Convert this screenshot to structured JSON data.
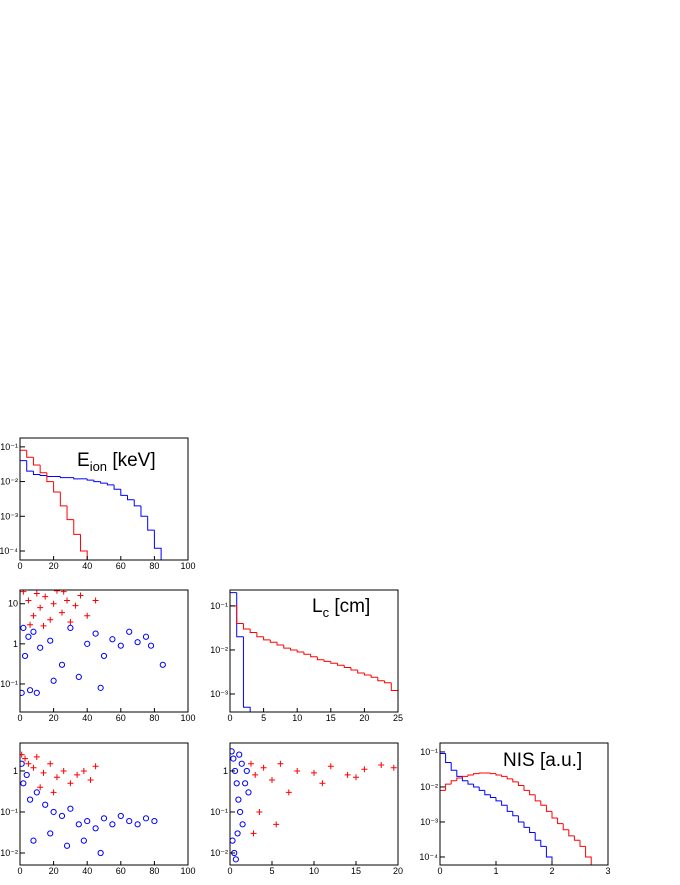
{
  "chart_data": [
    {
      "type": "histogram",
      "title": {
        "main": "E",
        "sub": "ion",
        "rest": " [keV]"
      },
      "log_y": true,
      "xlim": [
        0,
        100
      ],
      "ylim": [
        5.5e-05,
        0.18
      ],
      "xticks": [
        0,
        20,
        40,
        60,
        80,
        100
      ],
      "yticks": [
        {
          "value": 0.0001,
          "label": "10⁻⁴"
        },
        {
          "value": 0.001,
          "label": "10⁻³"
        },
        {
          "value": 0.01,
          "label": "10⁻²"
        },
        {
          "value": 0.1,
          "label": "10⁻¹"
        }
      ],
      "bins": [
        0,
        4,
        8,
        12,
        16,
        20,
        24,
        28,
        32,
        36,
        40,
        44,
        48,
        52,
        56,
        60,
        64,
        68,
        72,
        76,
        80,
        84,
        88,
        92,
        96,
        100
      ],
      "series": [
        {
          "color": "#0000ff",
          "values": [
            0.04,
            0.02,
            0.016,
            0.015,
            0.014,
            0.014,
            0.013,
            0.013,
            0.012,
            0.012,
            0.011,
            0.01,
            0.009,
            0.008,
            0.006,
            0.004,
            0.003,
            0.002,
            0.001,
            0.0004,
            0.00012,
            null,
            null,
            null,
            null
          ]
        },
        {
          "color": "#ff0000",
          "values": [
            0.08,
            0.05,
            0.03,
            0.018,
            0.01,
            0.005,
            0.002,
            0.0008,
            0.0003,
            0.0001,
            null,
            null,
            null,
            null,
            null,
            null,
            null,
            null,
            null,
            null,
            null,
            null,
            null,
            null,
            null
          ]
        }
      ]
    },
    {
      "type": "scatter",
      "log_y": true,
      "xlim": [
        0,
        100
      ],
      "ylim": [
        0.02,
        22
      ],
      "xticks": [
        0,
        20,
        40,
        60,
        80,
        100
      ],
      "yticks": [
        {
          "value": 0.1,
          "label": "10⁻¹"
        },
        1,
        10
      ],
      "series": [
        {
          "color": "#ff0000",
          "marker": "plus",
          "x": [
            2,
            5,
            8,
            10,
            12,
            15,
            18,
            20,
            22,
            25,
            28,
            30,
            33,
            36,
            40,
            45,
            6,
            14,
            26
          ],
          "y": [
            20,
            12,
            5,
            18,
            8,
            15,
            4,
            10,
            21,
            6,
            12,
            3.5,
            9,
            16,
            5,
            12,
            3,
            2.8,
            20
          ]
        },
        {
          "color": "#0000ff",
          "marker": "circle",
          "x": [
            1,
            3,
            5,
            8,
            12,
            18,
            25,
            30,
            35,
            40,
            45,
            50,
            55,
            60,
            65,
            70,
            75,
            78,
            85,
            10,
            20,
            48,
            2,
            6
          ],
          "y": [
            0.06,
            0.5,
            1.5,
            2,
            0.8,
            1.2,
            0.3,
            2.5,
            0.15,
            1,
            1.8,
            0.5,
            1.3,
            0.9,
            2,
            1.1,
            1.5,
            0.9,
            0.3,
            0.06,
            0.12,
            0.08,
            2.5,
            0.07
          ]
        }
      ]
    },
    {
      "type": "histogram",
      "title": {
        "main": "L",
        "sub": "c",
        "rest": " [cm]"
      },
      "log_y": true,
      "xlim": [
        0,
        25
      ],
      "ylim": [
        0.00039,
        0.23
      ],
      "xticks": [
        0,
        5,
        10,
        15,
        20,
        25
      ],
      "yticks": [
        {
          "value": 0.001,
          "label": "10⁻³"
        },
        {
          "value": 0.01,
          "label": "10⁻²"
        },
        {
          "value": 0.1,
          "label": "10⁻¹"
        }
      ],
      "bins": [
        0,
        1,
        2,
        3,
        4,
        5,
        6,
        7,
        8,
        9,
        10,
        11,
        12,
        13,
        14,
        15,
        16,
        17,
        18,
        19,
        20,
        21,
        22,
        23,
        24,
        25
      ],
      "series": [
        {
          "color": "#0000ff",
          "values": [
            0.2,
            0.02,
            0.0005,
            null,
            null,
            null,
            null,
            null,
            null,
            null,
            null,
            null,
            null,
            null,
            null,
            null,
            null,
            null,
            null,
            null,
            null,
            null,
            null,
            null,
            null
          ]
        },
        {
          "color": "#ff0000",
          "values": [
            0.1,
            0.04,
            0.03,
            0.025,
            0.02,
            0.017,
            0.015,
            0.013,
            0.011,
            0.01,
            0.009,
            0.008,
            0.007,
            0.006,
            0.0055,
            0.005,
            0.0045,
            0.004,
            0.0035,
            0.003,
            0.0027,
            0.0024,
            0.002,
            0.0018,
            0.0012
          ]
        }
      ]
    },
    {
      "type": "scatter",
      "log_y": true,
      "xlim": [
        0,
        100
      ],
      "ylim": [
        0.0051,
        4.8
      ],
      "xticks": [
        0,
        20,
        40,
        60,
        80,
        100
      ],
      "yticks": [
        {
          "value": 0.01,
          "label": "10⁻²"
        },
        {
          "value": 0.1,
          "label": "10⁻¹"
        },
        1
      ],
      "series": [
        {
          "color": "#ff0000",
          "marker": "plus",
          "x": [
            1,
            3,
            5,
            8,
            10,
            14,
            18,
            22,
            26,
            30,
            34,
            38,
            42,
            45,
            12,
            20
          ],
          "y": [
            2.5,
            2,
            1.5,
            1.2,
            2.2,
            0.9,
            1.5,
            0.7,
            1,
            0.5,
            0.8,
            1,
            0.6,
            1.3,
            0.4,
            0.3
          ]
        },
        {
          "color": "#0000ff",
          "marker": "circle",
          "x": [
            1,
            2,
            4,
            6,
            10,
            15,
            20,
            25,
            30,
            35,
            40,
            45,
            50,
            55,
            60,
            65,
            70,
            75,
            80,
            8,
            18,
            28,
            38,
            48
          ],
          "y": [
            1.5,
            0.5,
            0.8,
            0.2,
            0.3,
            0.15,
            0.1,
            0.08,
            0.12,
            0.05,
            0.06,
            0.04,
            0.07,
            0.05,
            0.08,
            0.06,
            0.05,
            0.07,
            0.06,
            0.02,
            0.03,
            0.015,
            0.02,
            0.01
          ]
        }
      ]
    },
    {
      "type": "scatter",
      "log_y": true,
      "xlim": [
        0,
        20
      ],
      "ylim": [
        0.0051,
        4.8
      ],
      "xticks": [
        0,
        5,
        10,
        15,
        20
      ],
      "yticks": [
        {
          "value": 0.01,
          "label": "10⁻²"
        },
        {
          "value": 0.1,
          "label": "10⁻¹"
        },
        1
      ],
      "series": [
        {
          "color": "#ff0000",
          "marker": "plus",
          "x": [
            2.5,
            3,
            4,
            5,
            6,
            8,
            10,
            12,
            14,
            16,
            18,
            19.5,
            3.5,
            7,
            11,
            15,
            2.8,
            5.5
          ],
          "y": [
            1.5,
            0.8,
            1.2,
            0.6,
            1.5,
            1,
            0.9,
            1.3,
            0.8,
            1.1,
            1.4,
            1.2,
            0.1,
            0.3,
            0.5,
            0.7,
            0.03,
            0.05
          ]
        },
        {
          "color": "#0000ff",
          "marker": "circle",
          "x": [
            0.2,
            0.4,
            0.6,
            0.8,
            1,
            1.2,
            1.5,
            1.8,
            2,
            2.2,
            0.3,
            0.5,
            0.9,
            1.1,
            1.4,
            0.7
          ],
          "y": [
            3,
            2,
            1,
            0.5,
            0.2,
            0.1,
            0.05,
            0.5,
            1,
            0.3,
            0.02,
            0.01,
            0.03,
            2.5,
            1.5,
            0.007
          ]
        }
      ]
    },
    {
      "type": "histogram",
      "title": {
        "main": "NIS [a.u.]"
      },
      "log_y": true,
      "xlim": [
        0,
        3
      ],
      "ylim": [
        5.9e-05,
        0.18
      ],
      "xticks": [
        0,
        1,
        2,
        3
      ],
      "yticks": [
        {
          "value": 0.0001,
          "label": "10⁻⁴"
        },
        {
          "value": 0.001,
          "label": "10⁻³"
        },
        {
          "value": 0.01,
          "label": "10⁻²"
        },
        {
          "value": 0.1,
          "label": "10⁻¹"
        }
      ],
      "bins": [
        0,
        0.1,
        0.2,
        0.3,
        0.4,
        0.5,
        0.6,
        0.7,
        0.8,
        0.9,
        1,
        1.1,
        1.2,
        1.3,
        1.4,
        1.5,
        1.6,
        1.7,
        1.8,
        1.9,
        2,
        2.1,
        2.2,
        2.3,
        2.4,
        2.5,
        2.6,
        2.7,
        2.8,
        2.9,
        3
      ],
      "series": [
        {
          "color": "#0000ff",
          "values": [
            0.09,
            0.05,
            0.03,
            0.02,
            0.015,
            0.012,
            0.01,
            0.008,
            0.006,
            0.005,
            0.004,
            0.003,
            0.002,
            0.0015,
            0.001,
            0.0007,
            0.0005,
            0.0003,
            0.0002,
            0.0001,
            null,
            null,
            null,
            null,
            null,
            null,
            null,
            null,
            null,
            null
          ]
        },
        {
          "color": "#ff0000",
          "values": [
            0.008,
            0.012,
            0.015,
            0.018,
            0.02,
            0.022,
            0.024,
            0.025,
            0.025,
            0.024,
            0.022,
            0.02,
            0.017,
            0.014,
            0.011,
            0.008,
            0.006,
            0.004,
            0.003,
            0.002,
            0.0013,
            0.0009,
            0.0006,
            0.0004,
            0.0003,
            0.0002,
            0.0001,
            null,
            null,
            null
          ]
        }
      ]
    }
  ]
}
